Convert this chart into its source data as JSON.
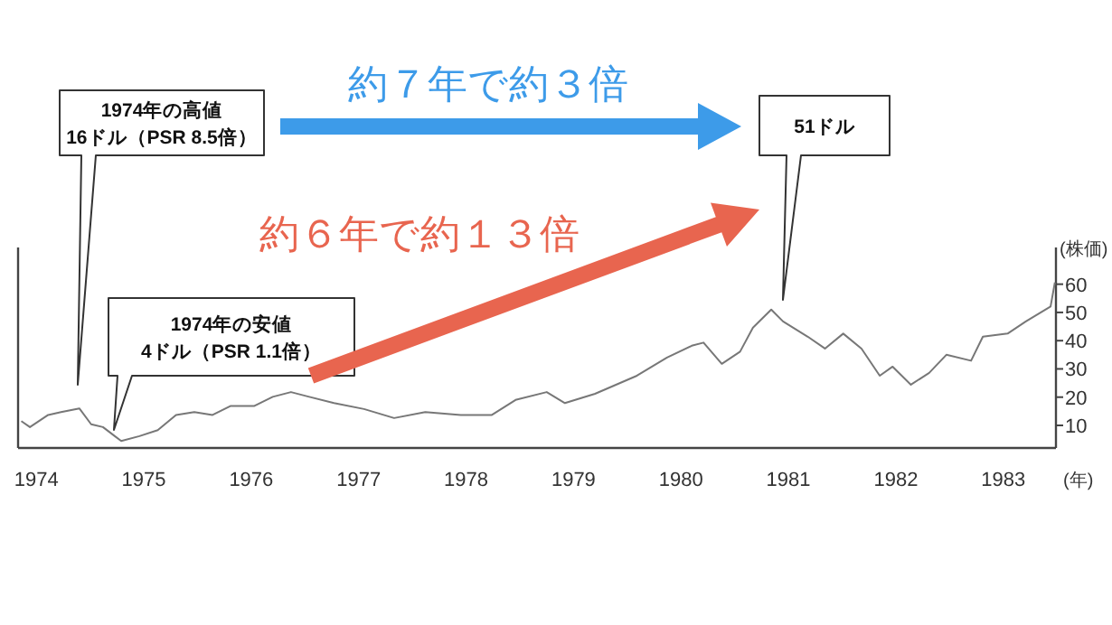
{
  "chart_data": {
    "type": "line",
    "xlabel": "(年)",
    "ylabel": "(株価)",
    "xlim": [
      1973.83,
      1983.49
    ],
    "ylim": [
      2,
      73
    ],
    "xticks": [
      1974,
      1975,
      1976,
      1977,
      1978,
      1979,
      1980,
      1981,
      1982,
      1983
    ],
    "yticks": [
      10,
      20,
      30,
      40,
      50,
      60
    ],
    "grid": false,
    "series": [
      {
        "color": "#777777",
        "x": [
          1973.86,
          1973.94,
          1974.11,
          1974.23,
          1974.4,
          1974.51,
          1974.62,
          1974.73,
          1974.79,
          1974.96,
          1975.13,
          1975.3,
          1975.47,
          1975.64,
          1975.81,
          1976.03,
          1976.2,
          1976.37,
          1976.54,
          1976.77,
          1977.05,
          1977.33,
          1977.62,
          1977.95,
          1978.24,
          1978.46,
          1978.75,
          1978.92,
          1979.2,
          1979.59,
          1979.87,
          1980.1,
          1980.21,
          1980.38,
          1980.55,
          1980.67,
          1980.84,
          1980.95,
          1981.18,
          1981.34,
          1981.51,
          1981.68,
          1981.85,
          1981.97,
          1982.14,
          1982.31,
          1982.47,
          1982.7,
          1982.81,
          1983.04,
          1983.21,
          1983.44,
          1983.48
        ],
        "values": [
          11.5,
          9.4,
          13.7,
          14.7,
          16,
          10.4,
          9.4,
          6.2,
          4.5,
          6.2,
          8.3,
          13.7,
          14.7,
          13.7,
          16.9,
          16.9,
          20.1,
          21.8,
          20.1,
          17.9,
          15.8,
          12.6,
          14.7,
          13.7,
          13.7,
          19,
          21.8,
          17.9,
          21.2,
          27.6,
          34,
          38.2,
          39.3,
          31.8,
          36.1,
          44.6,
          51,
          46.8,
          41.4,
          37.2,
          42.5,
          37.2,
          27.6,
          30.8,
          24.4,
          28.6,
          35,
          32.9,
          41.4,
          42.5,
          46.8,
          52.1,
          60.6
        ]
      }
    ],
    "annotations": [
      "1974年の高値\n16ドル（PSR 8.5倍）",
      "1974年の安値\n4ドル（PSR 1.1倍）",
      "51ドル",
      "約７年で約３倍",
      "約６年で約１３倍"
    ]
  }
}
